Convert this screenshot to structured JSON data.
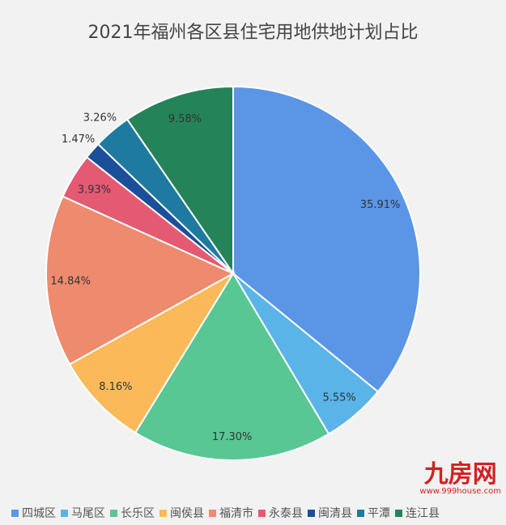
{
  "chart_data": {
    "type": "pie",
    "title": "2021年福州各区县住宅用地供地计划占比",
    "categories": [
      "四城区",
      "马尾区",
      "长乐区",
      "闽侯县",
      "福清市",
      "永泰县",
      "闽清县",
      "平潭",
      "连江县"
    ],
    "values": [
      35.91,
      5.55,
      17.3,
      8.16,
      14.84,
      3.93,
      1.47,
      3.26,
      9.58
    ],
    "labels": [
      "35.91%",
      "5.55%",
      "17.30%",
      "8.16%",
      "14.84%",
      "3.93%",
      "1.47%",
      "3.26%",
      "9.58%"
    ],
    "colors": [
      "#5b96e6",
      "#5ab4e8",
      "#58c794",
      "#fbb95a",
      "#ee8a6e",
      "#e45a72",
      "#1b4f9a",
      "#1e7aa0",
      "#25835a"
    ],
    "legend": "bottom"
  },
  "watermark": {
    "logo": "九房网",
    "url": "www.999house.com"
  }
}
